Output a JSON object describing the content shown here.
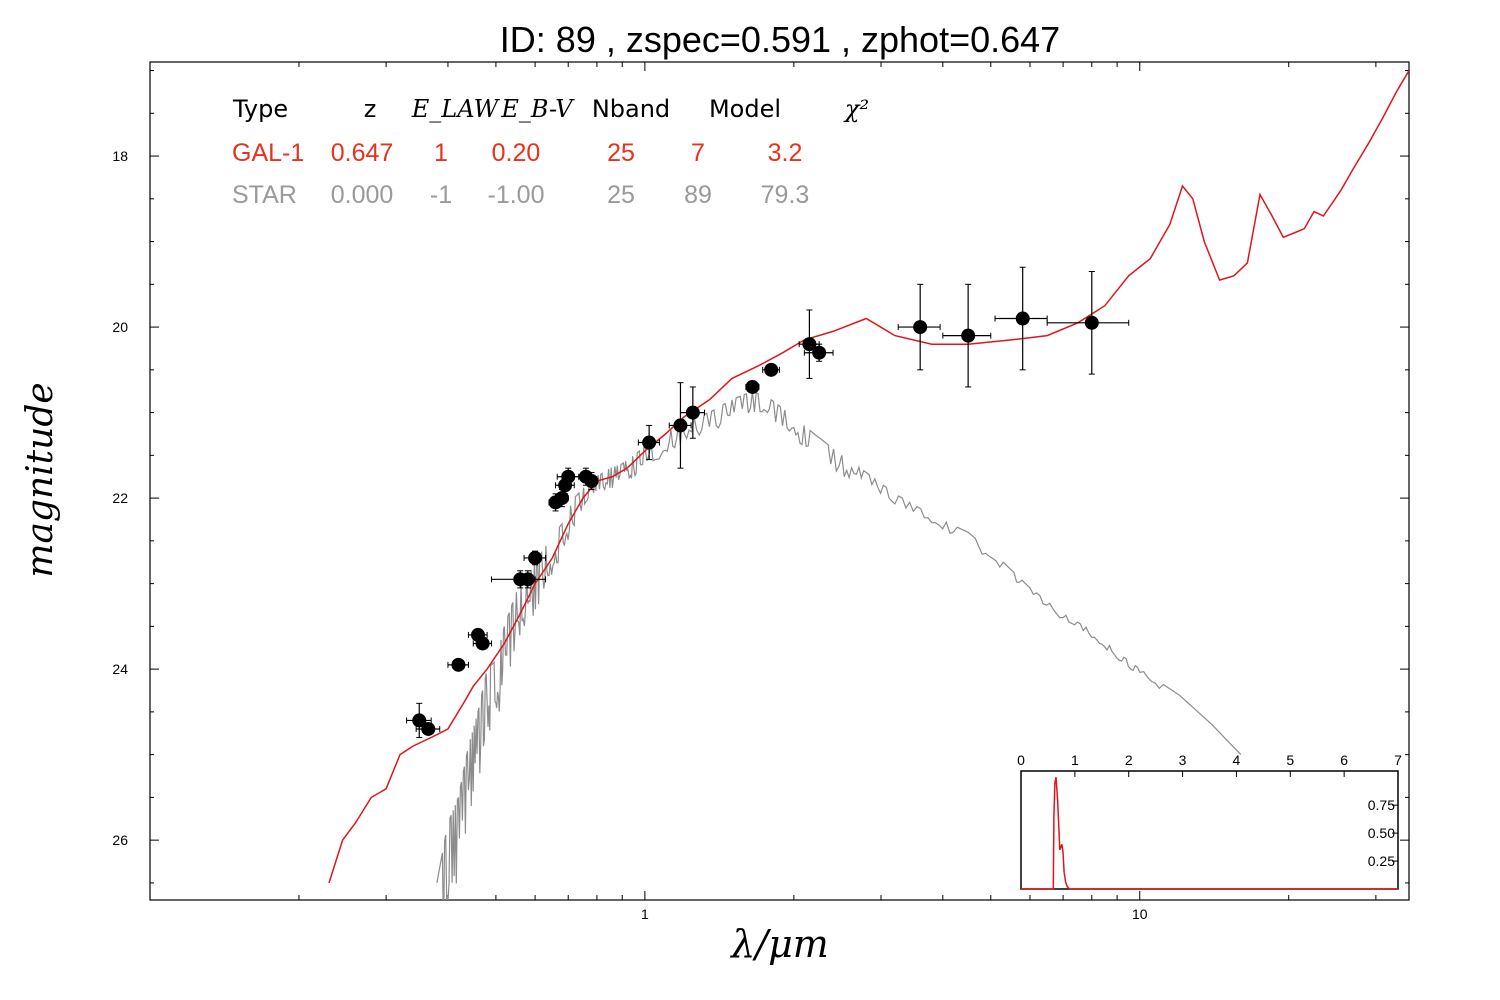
{
  "title": "ID:  89    , zspec=0.591 , zphot=0.647",
  "main": {
    "xlabel": "λ/μm",
    "ylabel": "magnitude",
    "x_ticks": [
      {
        "value": 1,
        "label": "1"
      },
      {
        "value": 10,
        "label": "10"
      }
    ],
    "y_ticks": [
      {
        "value": 18,
        "label": "18"
      },
      {
        "value": 20,
        "label": "20"
      },
      {
        "value": 22,
        "label": "22"
      },
      {
        "value": 24,
        "label": "24"
      },
      {
        "value": 26,
        "label": "26"
      }
    ]
  },
  "table": {
    "headers": [
      "Type",
      "z",
      "E_LAW",
      "E_B-V",
      "Nband",
      "Model",
      "χ²"
    ],
    "rows": [
      {
        "cells": [
          "GAL-1",
          "0.647",
          "1",
          "0.20",
          "25",
          "7",
          "3.2"
        ],
        "color": "#e8321e"
      },
      {
        "cells": [
          "STAR",
          "0.000",
          "-1",
          "-1.00",
          "25",
          "89",
          "79.3"
        ],
        "color": "#9a9a9a"
      }
    ]
  },
  "inset": {
    "x_ticks": [
      "0",
      "1",
      "2",
      "3",
      "4",
      "5",
      "6",
      "7"
    ],
    "y_ticks": [
      "0.25",
      "0.50",
      "0.75"
    ]
  },
  "colors": {
    "galaxy": "#e0151b",
    "star": "#8c8c8c",
    "points": "#000000"
  },
  "chart_data": [
    {
      "type": "scatter",
      "xscale": "log",
      "y_inverted": true,
      "xlim": [
        0.1,
        35
      ],
      "ylim": [
        26.7,
        16.9
      ],
      "xlabel": "λ/μm",
      "ylabel": "magnitude",
      "grid": false,
      "series": [
        {
          "name": "GAL-1",
          "kind": "line",
          "color": "#e0151b",
          "x": [
            0.23,
            0.245,
            0.26,
            0.28,
            0.3,
            0.32,
            0.34,
            0.37,
            0.4,
            0.43,
            0.45,
            0.48,
            0.52,
            0.56,
            0.6,
            0.65,
            0.7,
            0.75,
            0.8,
            0.86,
            0.92,
            1.0,
            1.1,
            1.2,
            1.35,
            1.5,
            1.7,
            1.9,
            2.1,
            2.4,
            2.8,
            3.2,
            3.8,
            4.5,
            5.5,
            6.5,
            7.5,
            8.5,
            9.5,
            10.5,
            11.5,
            12.2,
            12.8,
            13.5,
            14.5,
            15.5,
            16.5,
            17.5,
            18.5,
            19.5,
            20.5,
            21.5,
            22.5,
            23.5,
            24.5,
            25.5,
            27,
            29,
            31,
            33,
            35
          ],
          "y": [
            26.5,
            26.0,
            25.8,
            25.5,
            25.4,
            25.0,
            24.9,
            24.8,
            24.7,
            24.4,
            24.2,
            24.0,
            23.7,
            23.35,
            23.0,
            22.7,
            22.3,
            22.0,
            21.8,
            21.75,
            21.65,
            21.45,
            21.25,
            21.05,
            20.85,
            20.6,
            20.45,
            20.3,
            20.15,
            20.05,
            19.9,
            20.1,
            20.2,
            20.2,
            20.15,
            20.1,
            19.95,
            19.75,
            19.4,
            19.2,
            18.8,
            18.35,
            18.5,
            19.0,
            19.45,
            19.4,
            19.25,
            18.45,
            18.7,
            18.95,
            18.9,
            18.85,
            18.65,
            18.7,
            18.55,
            18.4,
            18.15,
            17.85,
            17.55,
            17.25,
            17.0
          ]
        },
        {
          "name": "STAR",
          "kind": "line",
          "color": "#8c8c8c",
          "x": [
            0.38,
            0.4,
            0.42,
            0.44,
            0.46,
            0.48,
            0.5,
            0.52,
            0.55,
            0.58,
            0.61,
            0.64,
            0.68,
            0.72,
            0.76,
            0.8,
            0.85,
            0.9,
            0.95,
            1.0,
            1.1,
            1.2,
            1.35,
            1.5,
            1.65,
            1.8,
            2.0,
            2.2,
            2.5,
            2.8,
            3.2,
            3.8,
            4.5,
            5.3,
            6.0,
            7.0,
            8.0,
            9.0,
            10.0,
            12.0,
            14.0,
            16.0
          ],
          "y": [
            26.5,
            25.8,
            25.5,
            24.9,
            24.5,
            24.0,
            23.9,
            23.5,
            23.1,
            22.9,
            22.7,
            22.5,
            22.3,
            22.0,
            21.85,
            21.75,
            21.65,
            21.6,
            21.5,
            21.4,
            21.25,
            21.1,
            21.0,
            20.85,
            20.75,
            20.85,
            21.05,
            21.25,
            21.5,
            21.7,
            21.95,
            22.2,
            22.4,
            22.75,
            23.05,
            23.35,
            23.55,
            23.8,
            24.0,
            24.3,
            24.65,
            25.0
          ]
        },
        {
          "name": "",
          "kind": "points_with_errorbars",
          "color": "#000000",
          "points": [
            {
              "x": 0.35,
              "y": 24.6,
              "xerr": 0.02,
              "yerr": 0.2
            },
            {
              "x": 0.365,
              "y": 24.7,
              "xerr": 0.02,
              "yerr": 0.05
            },
            {
              "x": 0.42,
              "y": 23.95,
              "xerr": 0.02,
              "yerr": 0.05
            },
            {
              "x": 0.46,
              "y": 23.6,
              "xerr": 0.02,
              "yerr": 0.05
            },
            {
              "x": 0.47,
              "y": 23.7,
              "xerr": 0.02,
              "yerr": 0.05
            },
            {
              "x": 0.56,
              "y": 22.95,
              "xerr": 0.07,
              "yerr": 0.1
            },
            {
              "x": 0.58,
              "y": 22.95,
              "xerr": 0.02,
              "yerr": 0.1
            },
            {
              "x": 0.6,
              "y": 22.7,
              "xerr": 0.03,
              "yerr": 0.08
            },
            {
              "x": 0.66,
              "y": 22.05,
              "xerr": 0.02,
              "yerr": 0.1
            },
            {
              "x": 0.68,
              "y": 22.0,
              "xerr": 0.02,
              "yerr": 0.1
            },
            {
              "x": 0.69,
              "y": 21.85,
              "xerr": 0.03,
              "yerr": 0.1
            },
            {
              "x": 0.7,
              "y": 21.75,
              "xerr": 0.035,
              "yerr": 0.1
            },
            {
              "x": 0.76,
              "y": 21.75,
              "xerr": 0.02,
              "yerr": 0.1
            },
            {
              "x": 0.78,
              "y": 21.8,
              "xerr": 0.02,
              "yerr": 0.1
            },
            {
              "x": 1.02,
              "y": 21.35,
              "xerr": 0.05,
              "yerr": 0.2
            },
            {
              "x": 1.18,
              "y": 21.15,
              "xerr": 0.06,
              "yerr": 0.5
            },
            {
              "x": 1.25,
              "y": 21.0,
              "xerr": 0.07,
              "yerr": 0.3
            },
            {
              "x": 1.65,
              "y": 20.7,
              "xerr": 0.05,
              "yerr": 0.05
            },
            {
              "x": 1.8,
              "y": 20.5,
              "xerr": 0.07,
              "yerr": 0.05
            },
            {
              "x": 2.15,
              "y": 20.2,
              "xerr": 0.1,
              "yerr": 0.4
            },
            {
              "x": 2.25,
              "y": 20.3,
              "xerr": 0.15,
              "yerr": 0.1
            },
            {
              "x": 3.6,
              "y": 20.0,
              "xerr": 0.35,
              "yerr": 0.5
            },
            {
              "x": 4.5,
              "y": 20.1,
              "xerr": 0.5,
              "yerr": 0.6
            },
            {
              "x": 5.8,
              "y": 19.9,
              "xerr": 0.7,
              "yerr": 0.6
            },
            {
              "x": 8.0,
              "y": 19.95,
              "xerr": 1.5,
              "yerr": 0.6
            }
          ]
        }
      ]
    },
    {
      "type": "line",
      "xlim": [
        0,
        7
      ],
      "ylim": [
        0,
        1.02
      ],
      "grid": false,
      "series": [
        {
          "name": "",
          "color": "#e0151b",
          "x": [
            0,
            0.6,
            0.61,
            0.63,
            0.65,
            0.68,
            0.72,
            0.76,
            0.78,
            0.8,
            0.83,
            0.86,
            0.9,
            0.95,
            7
          ],
          "y": [
            0,
            0,
            0.65,
            0.95,
            1.0,
            0.8,
            0.35,
            0.4,
            0.33,
            0.15,
            0.06,
            0.02,
            0.0,
            0,
            0
          ]
        }
      ]
    }
  ]
}
